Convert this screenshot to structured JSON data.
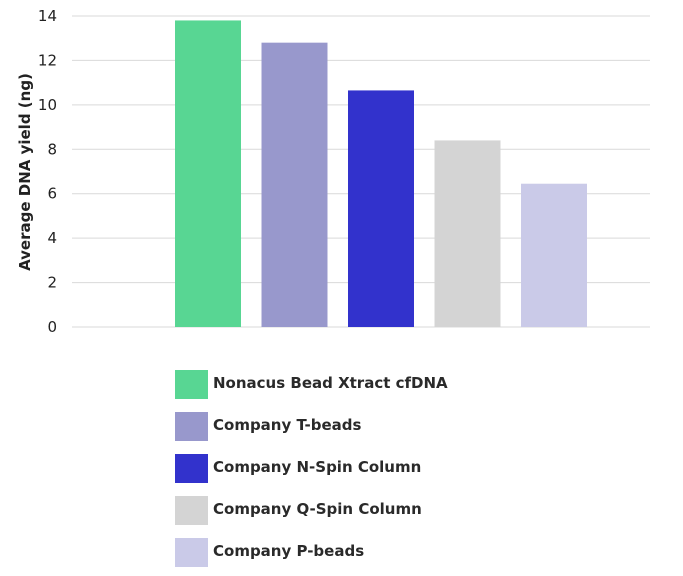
{
  "chart_data": {
    "type": "bar",
    "categories": [
      "Nonacus Bead Xtract cfDNA",
      "Company T-beads",
      "Company N-Spin Column",
      "Company Q-Spin Column",
      "Company P-beads"
    ],
    "values": [
      13.8,
      12.8,
      10.65,
      8.4,
      6.45
    ],
    "colors": [
      "#58d693",
      "#9898cc",
      "#3232cc",
      "#d4d4d4",
      "#cacae8"
    ],
    "title": "",
    "xlabel": "",
    "ylabel": "Average DNA yield (ng)",
    "ylim": [
      0,
      14
    ],
    "yticks": [
      0,
      2,
      4,
      6,
      8,
      10,
      12,
      14
    ],
    "grid": true,
    "legend_position": "bottom"
  }
}
